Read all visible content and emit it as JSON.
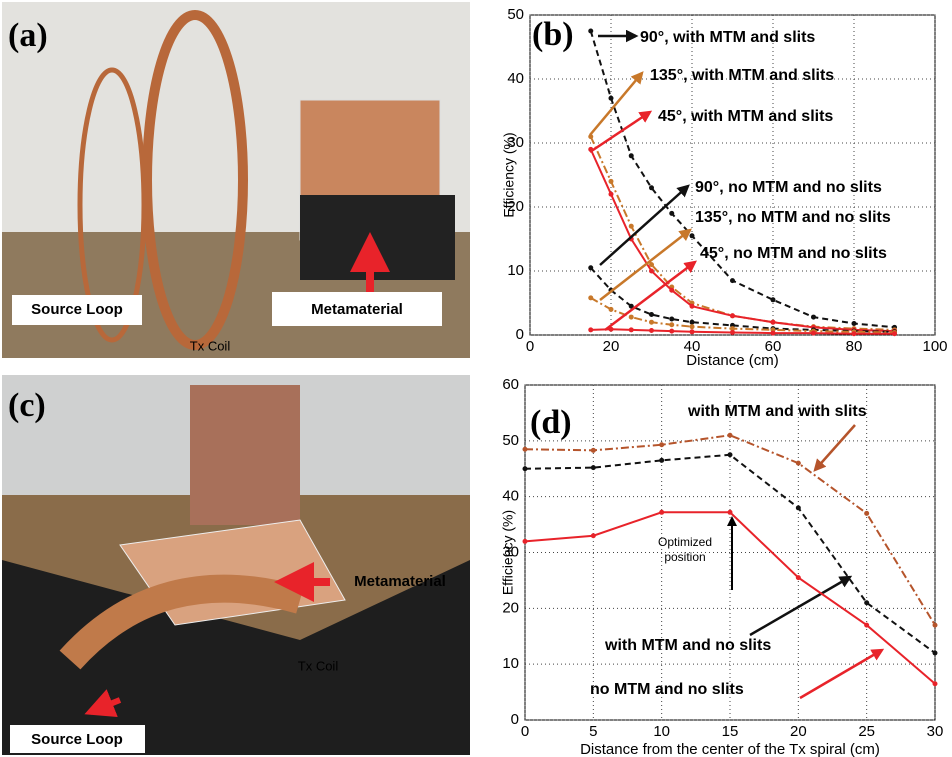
{
  "photos": [
    {
      "label": "(a)",
      "captions": [
        "Source Loop",
        "Tx Coil",
        "Metamaterial"
      ]
    },
    {
      "label": "(c)",
      "captions": [
        "Metamaterial",
        "Tx Coil",
        "Source Loop"
      ]
    }
  ],
  "chart_data": [
    {
      "type": "line",
      "label": "(b)",
      "xlabel": "Distance (cm)",
      "ylabel": "Efficiency (%)",
      "xlim": [
        0,
        100
      ],
      "ylim": [
        0,
        50
      ],
      "xticks": [
        0,
        20,
        40,
        60,
        80,
        100
      ],
      "yticks": [
        0,
        10,
        20,
        30,
        40,
        50
      ],
      "grid": true,
      "x": [
        15,
        20,
        25,
        30,
        35,
        40,
        50,
        60,
        70,
        80,
        90
      ],
      "series": [
        {
          "name": "90°, with MTM and slits",
          "color": "#111111",
          "dash": "6,4",
          "values": [
            47.5,
            37,
            28,
            23,
            19,
            15.5,
            8.5,
            5.5,
            2.8,
            1.8,
            1.2
          ]
        },
        {
          "name": "135°, with MTM and slits",
          "color": "#c8782a",
          "dash": "8,3,2,3",
          "values": [
            31,
            24,
            17,
            11,
            7.5,
            5,
            3,
            2,
            1.3,
            1,
            0.8
          ]
        },
        {
          "name": "45°, with MTM and slits",
          "color": "#e8232a",
          "dash": "",
          "values": [
            29,
            22,
            15,
            10,
            7,
            4.5,
            3,
            2,
            1.2,
            0.8,
            0.6
          ]
        },
        {
          "name": "90°, no MTM and no slits",
          "color": "#111111",
          "dash": "6,4",
          "values": [
            10.5,
            7,
            4.5,
            3.2,
            2.5,
            2,
            1.5,
            1,
            0.8,
            0.6,
            0.5
          ]
        },
        {
          "name": "135°, no MTM and no slits",
          "color": "#c8782a",
          "dash": "8,3,2,3",
          "values": [
            5.8,
            4,
            2.8,
            2,
            1.6,
            1.3,
            1,
            0.8,
            0.6,
            0.5,
            0.4
          ]
        },
        {
          "name": "45°, no MTM and no slits",
          "color": "#e8232a",
          "dash": "",
          "values": [
            0.8,
            0.9,
            0.8,
            0.7,
            0.6,
            0.5,
            0.4,
            0.3,
            0.3,
            0.2,
            0.2
          ]
        }
      ]
    },
    {
      "type": "line",
      "label": "(d)",
      "xlabel": "Distance from the center of the Tx spiral (cm)",
      "ylabel": "Efficiency (%)",
      "xlim": [
        0,
        30
      ],
      "ylim": [
        0,
        60
      ],
      "xticks": [
        0,
        5,
        10,
        15,
        20,
        25,
        30
      ],
      "yticks": [
        0,
        10,
        20,
        30,
        40,
        50,
        60
      ],
      "grid": true,
      "x": [
        0,
        5,
        10,
        15,
        20,
        25,
        30
      ],
      "annotation": "Optimized position",
      "series": [
        {
          "name": "with MTM and with slits",
          "color": "#b5542b",
          "dash": "8,3,2,3",
          "values": [
            48.5,
            48.3,
            49.3,
            51,
            46,
            37,
            17
          ]
        },
        {
          "name": "with MTM and no slits",
          "color": "#111111",
          "dash": "6,4",
          "values": [
            45,
            45.2,
            46.5,
            47.5,
            38,
            21,
            12
          ]
        },
        {
          "name": "no MTM and no slits",
          "color": "#e8232a",
          "dash": "",
          "values": [
            32,
            33,
            37.2,
            37.2,
            25.5,
            17,
            6.5
          ]
        }
      ]
    }
  ]
}
